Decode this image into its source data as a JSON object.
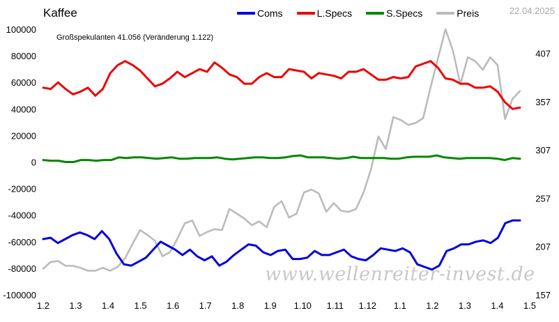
{
  "header": {
    "title": "Kaffee",
    "date": "22.04.2025",
    "annotation": "Großspekulanten 41.056 (Veränderung 1.122)",
    "watermark": "www.wellenreiter-invest.de"
  },
  "chart_data": {
    "type": "line",
    "title": "Kaffee",
    "x_tick_labels": [
      "1.2",
      "1.3",
      "1.4",
      "1.5",
      "1.6",
      "1.7",
      "1.8",
      "1.9",
      "1.10",
      "1.11",
      "1.12",
      "1.1",
      "1.2",
      "1.3",
      "1.4",
      "1.5"
    ],
    "left_axis": {
      "ylim": [
        -100000,
        100000
      ],
      "ticks": [
        -100000,
        -80000,
        -60000,
        -40000,
        -20000,
        0,
        20000,
        40000,
        60000,
        80000,
        100000
      ]
    },
    "right_axis": {
      "ylim": [
        157,
        432
      ],
      "ticks": [
        157,
        207,
        257,
        307,
        357,
        407
      ]
    },
    "legend_position": "top",
    "grid": false,
    "series": [
      {
        "name": "Coms",
        "color": "#0000dd",
        "axis": "left",
        "values": [
          -58000,
          -57000,
          -61000,
          -58000,
          -55000,
          -53000,
          -55000,
          -58000,
          -52000,
          -58000,
          -69000,
          -77000,
          -78000,
          -75000,
          -72000,
          -66000,
          -60000,
          -63000,
          -66000,
          -70000,
          -66000,
          -71000,
          -74000,
          -71000,
          -78000,
          -75000,
          -70000,
          -66000,
          -62000,
          -63000,
          -68000,
          -70000,
          -67000,
          -66000,
          -73000,
          -73000,
          -72000,
          -67000,
          -70000,
          -70000,
          -68000,
          -66000,
          -71000,
          -73000,
          -74000,
          -70000,
          -65000,
          -66000,
          -67000,
          -65000,
          -68000,
          -77000,
          -79000,
          -81000,
          -78000,
          -67000,
          -65000,
          -62000,
          -62000,
          -60000,
          -59000,
          -61000,
          -57000,
          -46000,
          -44000,
          -44000
        ]
      },
      {
        "name": "L.Specs",
        "color": "#ee0000",
        "axis": "left",
        "values": [
          56000,
          55000,
          60000,
          55000,
          51000,
          53000,
          56000,
          50000,
          55000,
          67000,
          73000,
          76000,
          73000,
          69000,
          63000,
          57000,
          59000,
          63000,
          68000,
          64000,
          67000,
          70000,
          68000,
          75000,
          71000,
          66000,
          64000,
          59000,
          59000,
          64000,
          67000,
          64000,
          64000,
          70000,
          69000,
          68000,
          63000,
          67000,
          66000,
          65000,
          63000,
          68000,
          68000,
          70000,
          66000,
          62000,
          62000,
          64000,
          63000,
          64000,
          72000,
          74000,
          76000,
          71000,
          63000,
          62000,
          59000,
          59000,
          56000,
          56000,
          57000,
          53000,
          45000,
          40000,
          41000
        ]
      },
      {
        "name": "S.Specs",
        "color": "#008800",
        "axis": "left",
        "values": [
          1500,
          1000,
          1000,
          0,
          0,
          1500,
          1500,
          1000,
          1500,
          1500,
          3500,
          3000,
          3500,
          3500,
          3000,
          2500,
          3000,
          3500,
          2500,
          2500,
          3000,
          3000,
          3000,
          3500,
          2500,
          2000,
          2500,
          3000,
          3500,
          3500,
          3000,
          3000,
          3500,
          4500,
          5000,
          3500,
          3500,
          3500,
          3000,
          2500,
          3000,
          4000,
          3000,
          3000,
          3000,
          3000,
          2500,
          2500,
          3500,
          4000,
          4000,
          4000,
          5000,
          3500,
          3000,
          2500,
          3000,
          3000,
          3000,
          3000,
          2500,
          1500,
          3000,
          2500
        ]
      },
      {
        "name": "Preis",
        "color": "#bbbbbb",
        "axis": "right",
        "values": [
          184,
          191,
          192,
          187,
          187,
          185,
          182,
          182,
          185,
          182,
          186,
          195,
          210,
          224,
          219,
          213,
          197,
          201,
          215,
          231,
          234,
          218,
          222,
          225,
          224,
          246,
          241,
          236,
          229,
          233,
          227,
          248,
          254,
          237,
          241,
          263,
          266,
          262,
          243,
          252,
          244,
          243,
          246,
          263,
          287,
          321,
          308,
          341,
          338,
          333,
          335,
          340,
          372,
          402,
          432,
          410,
          375,
          403,
          399,
          390,
          403,
          395,
          339,
          360,
          368
        ]
      }
    ]
  }
}
